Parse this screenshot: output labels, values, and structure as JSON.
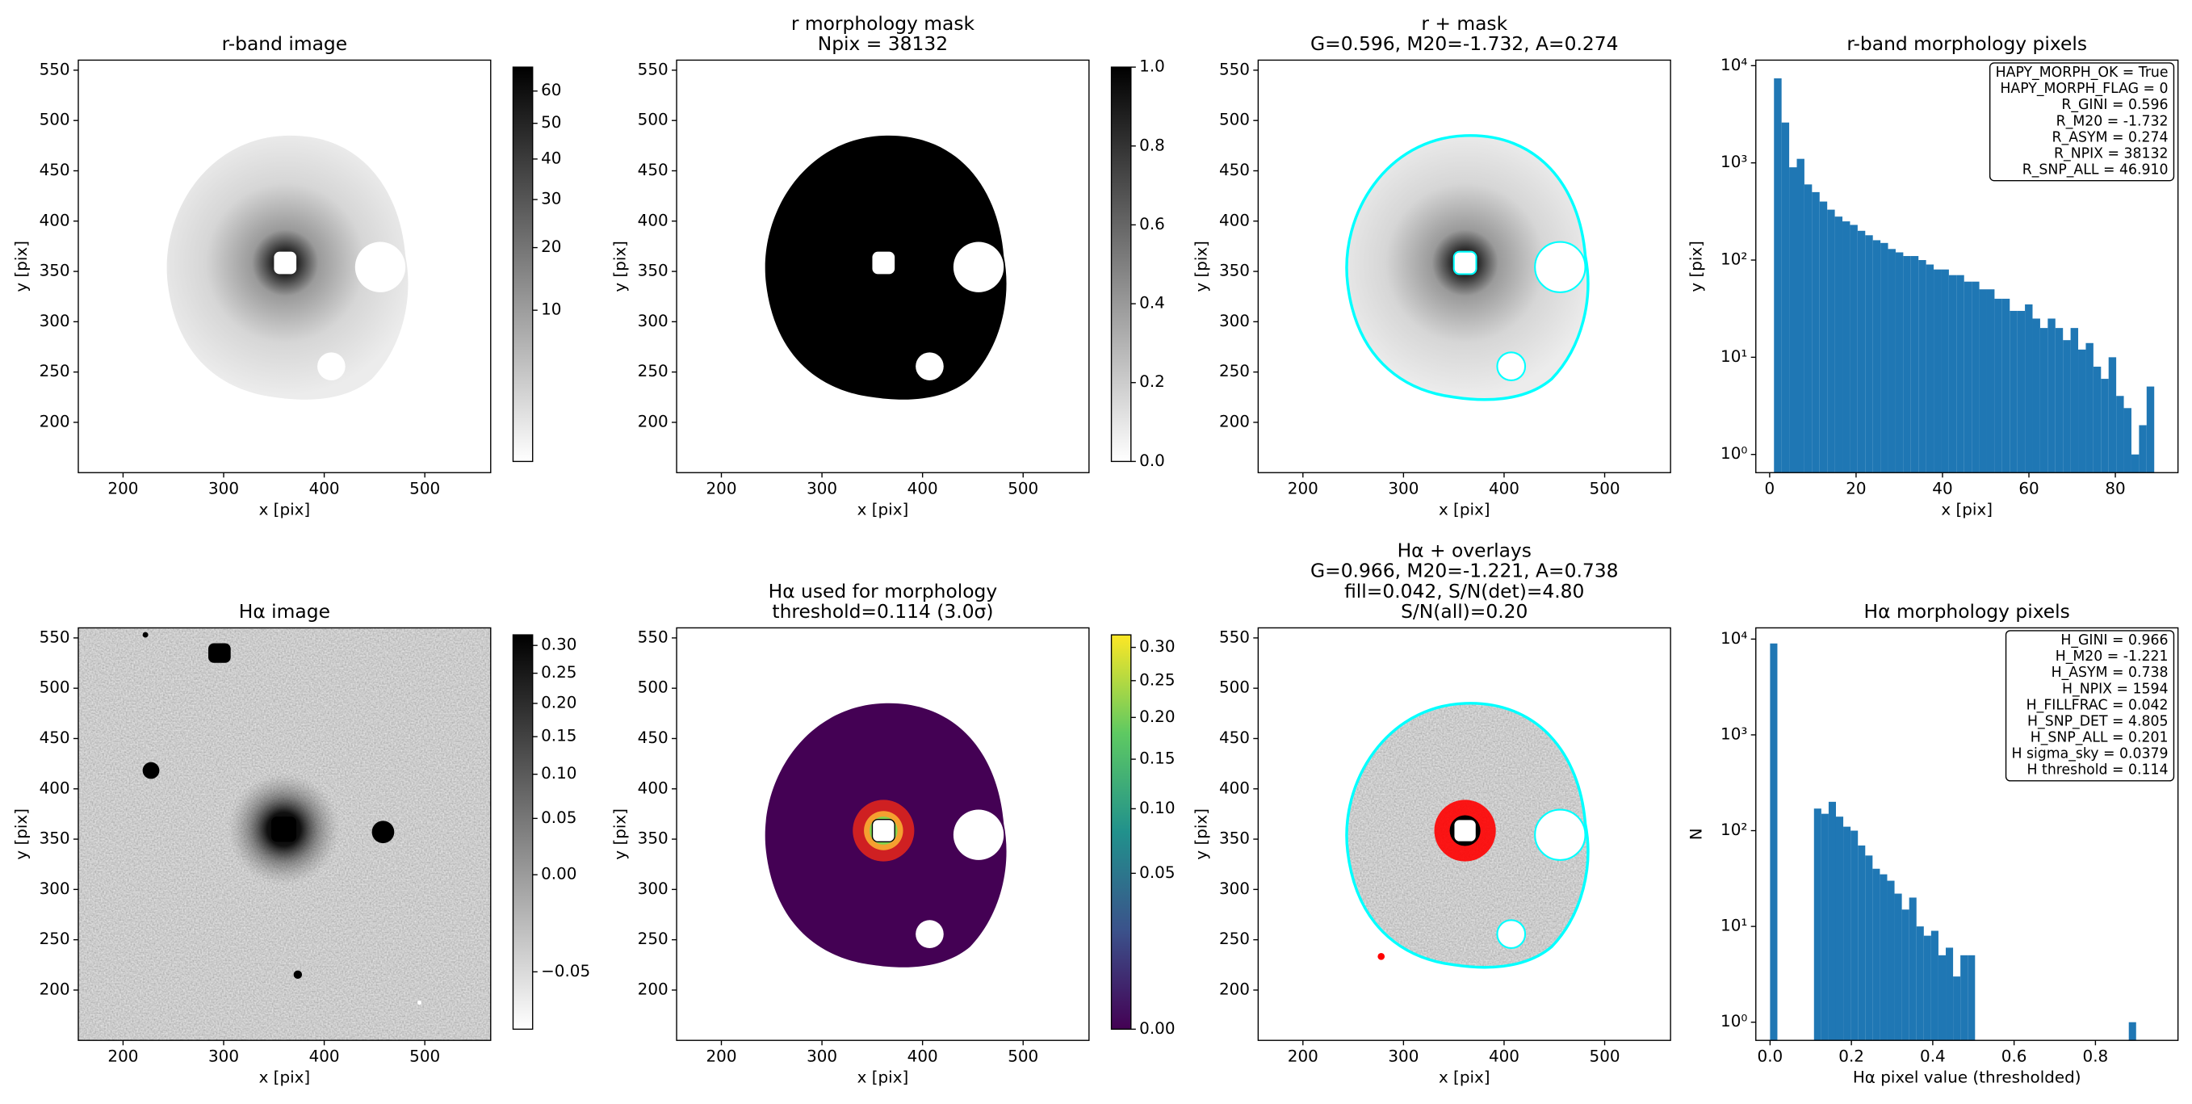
{
  "chart_data": [
    {
      "type": "image",
      "title": [
        "r-band image"
      ],
      "xlabel": "x [pix]",
      "ylabel": "y [pix]",
      "xlim": [
        155.5,
        565.5
      ],
      "ylim": [
        150,
        560
      ],
      "xticks": [
        200,
        300,
        400,
        500
      ],
      "yticks": [
        200,
        250,
        300,
        350,
        400,
        450,
        500,
        550
      ],
      "cmap": "gray_r",
      "colorbar": {
        "clim": [
          0,
          68
        ],
        "scale": "sqrt",
        "ticks": [
          10,
          20,
          30,
          40,
          50,
          60
        ]
      }
    },
    {
      "type": "image",
      "title": [
        "r morphology mask",
        "Npix = 38132"
      ],
      "xlabel": "x [pix]",
      "ylabel": "y [pix]",
      "xlim": [
        155.5,
        565.5
      ],
      "ylim": [
        150,
        560
      ],
      "xticks": [
        200,
        300,
        400,
        500
      ],
      "yticks": [
        200,
        250,
        300,
        350,
        400,
        450,
        500,
        550
      ],
      "cmap": "gray_r",
      "colorbar": {
        "clim": [
          0,
          1
        ],
        "scale": "linear",
        "ticks": [
          {
            "value": 0,
            "label": "0.0"
          },
          0.2,
          0.4,
          0.6,
          0.8,
          {
            "value": 1,
            "label": "1.0"
          }
        ]
      }
    },
    {
      "type": "image",
      "title": [
        "r + mask",
        "G=0.596, M20=-1.732, A=0.274"
      ],
      "xlabel": "x [pix]",
      "ylabel": "y [pix]",
      "xlim": [
        155.5,
        565.5
      ],
      "ylim": [
        150,
        560
      ],
      "xticks": [
        200,
        300,
        400,
        500
      ],
      "yticks": [
        200,
        250,
        300,
        350,
        400,
        450,
        500,
        550
      ],
      "overlay_color": "#00ffff"
    },
    {
      "type": "histogram",
      "title": [
        "r-band morphology pixels"
      ],
      "xlabel": "x [pix]",
      "ylabel": "y [pix]",
      "log_y": true,
      "color": "#1f77b4",
      "xlim": [
        -3.2,
        94.5
      ],
      "ylim": [
        0.65,
        11400
      ],
      "xticks": [
        0,
        20,
        40,
        60,
        80
      ],
      "yticks": [
        {
          "value": 1,
          "label": "10⁰"
        },
        {
          "value": 10,
          "label": "10¹"
        },
        {
          "value": 100,
          "label": "10²"
        },
        {
          "value": 1000,
          "label": "10³"
        },
        {
          "value": 10000,
          "label": "10⁴"
        }
      ],
      "bins": [
        1,
        2.76,
        4.52,
        6.28,
        8.04,
        9.8,
        11.56,
        13.32,
        15.08,
        16.84,
        18.6,
        20.36,
        22.12,
        23.88,
        25.64,
        27.4,
        29.16,
        30.92,
        32.68,
        34.44,
        36.2,
        37.96,
        39.72,
        41.48,
        43.24,
        45,
        46.76,
        48.52,
        50.28,
        52.04,
        53.8,
        55.56,
        57.32,
        59.08,
        60.84,
        62.6,
        64.36,
        66.12,
        67.88,
        69.64,
        71.4,
        73.16,
        74.92,
        76.68,
        78.44,
        80.2,
        81.96,
        83.72,
        85.48,
        87.24,
        89
      ],
      "values": [
        7400,
        2600,
        900,
        1100,
        600,
        500,
        400,
        330,
        280,
        250,
        230,
        200,
        180,
        160,
        150,
        130,
        120,
        110,
        110,
        100,
        90,
        80,
        80,
        70,
        70,
        60,
        60,
        50,
        50,
        40,
        40,
        30,
        30,
        35,
        25,
        20,
        25,
        20,
        15,
        20,
        12,
        14,
        8,
        6,
        10,
        4,
        3,
        1,
        2,
        5
      ],
      "annotation": [
        "HAPY_MORPH_OK = True",
        "HAPY_MORPH_FLAG = 0",
        "R_GINI = 0.596",
        "R_M20 = -1.732",
        "R_ASYM = 0.274",
        "R_NPIX = 38132",
        "R_SNP_ALL = 46.910"
      ]
    },
    {
      "type": "image",
      "title": [
        "Hα image"
      ],
      "xlabel": "x [pix]",
      "ylabel": "y [pix]",
      "xlim": [
        155.5,
        565.5
      ],
      "ylim": [
        150,
        560
      ],
      "xticks": [
        200,
        300,
        400,
        500
      ],
      "yticks": [
        200,
        250,
        300,
        350,
        400,
        450,
        500,
        550
      ],
      "cmap": "gray_r",
      "colorbar": {
        "clim": [
          -0.058,
          0.32
        ],
        "scale": "sqrt",
        "ticks": [
          {
            "value": -0.05,
            "label": "−0.05"
          },
          {
            "value": 0,
            "label": "0.00"
          },
          0.05,
          {
            "value": 0.1,
            "label": "0.10"
          },
          0.15,
          {
            "value": 0.2,
            "label": "0.20"
          },
          0.25,
          {
            "value": 0.3,
            "label": "0.30"
          }
        ]
      }
    },
    {
      "type": "image",
      "title": [
        "Hα used for morphology",
        "threshold=0.114 (3.0σ)"
      ],
      "xlabel": "x [pix]",
      "ylabel": "y [pix]",
      "xlim": [
        155.5,
        565.5
      ],
      "ylim": [
        150,
        560
      ],
      "xticks": [
        200,
        300,
        400,
        500
      ],
      "yticks": [
        200,
        250,
        300,
        350,
        400,
        450,
        500,
        550
      ],
      "cmap": "viridis",
      "colorbar": {
        "clim": [
          0,
          0.32
        ],
        "scale": "sqrt",
        "ticks": [
          {
            "value": 0,
            "label": "0.00"
          },
          0.05,
          {
            "value": 0.1,
            "label": "0.10"
          },
          0.15,
          {
            "value": 0.2,
            "label": "0.20"
          },
          0.25,
          {
            "value": 0.3,
            "label": "0.30"
          }
        ]
      }
    },
    {
      "type": "image",
      "title": [
        "Hα + overlays",
        "G=0.966, M20=-1.221, A=0.738",
        "fill=0.042, S/N(det)=4.80",
        "S/N(all)=0.20"
      ],
      "xlabel": "x [pix]",
      "ylabel": "y [pix]",
      "xlim": [
        155.5,
        565.5
      ],
      "ylim": [
        150,
        560
      ],
      "xticks": [
        200,
        300,
        400,
        500
      ],
      "yticks": [
        200,
        250,
        300,
        350,
        400,
        450,
        500,
        550
      ],
      "overlay_color": "#00ffff"
    },
    {
      "type": "histogram",
      "title": [
        "Hα morphology pixels"
      ],
      "xlabel": "Hα pixel value (thresholded)",
      "ylabel": "N",
      "log_y": true,
      "color": "#1f77b4",
      "xlim": [
        -0.035,
        1.003
      ],
      "ylim": [
        0.646,
        13100
      ],
      "xticks": [
        {
          "value": 0,
          "label": "0.0"
        },
        0.2,
        0.4,
        0.6,
        0.8
      ],
      "yticks": [
        {
          "value": 1,
          "label": "10⁰"
        },
        {
          "value": 10,
          "label": "10¹"
        },
        {
          "value": 100,
          "label": "10²"
        },
        {
          "value": 1000,
          "label": "10³"
        },
        {
          "value": 10000,
          "label": "10⁴"
        }
      ],
      "bins": [
        0,
        0.018,
        0.036,
        0.054,
        0.072,
        0.09,
        0.108,
        0.126,
        0.144,
        0.162,
        0.18,
        0.198,
        0.216,
        0.234,
        0.252,
        0.27,
        0.288,
        0.306,
        0.324,
        0.342,
        0.36,
        0.378,
        0.396,
        0.414,
        0.432,
        0.45,
        0.468,
        0.486,
        0.504,
        0.522,
        0.54,
        0.558,
        0.576,
        0.594,
        0.612,
        0.63,
        0.648,
        0.666,
        0.684,
        0.702,
        0.72,
        0.738,
        0.756,
        0.774,
        0.792,
        0.81,
        0.828,
        0.846,
        0.864,
        0.882,
        0.9
      ],
      "values": [
        9000,
        0,
        0,
        0,
        0,
        0,
        170,
        150,
        200,
        140,
        110,
        100,
        70,
        55,
        40,
        35,
        30,
        22,
        15,
        20,
        10,
        8,
        9,
        5,
        6,
        3,
        5,
        5,
        0,
        0,
        0,
        0,
        0,
        0,
        0,
        0,
        0,
        0,
        0,
        0,
        0,
        0,
        0,
        0,
        0,
        0,
        0,
        0,
        0,
        1
      ],
      "annotation": [
        "H_GINI = 0.966",
        "H_M20 = -1.221",
        "H_ASYM = 0.738",
        "H_NPIX = 1594",
        "H_FILLFRAC = 0.042",
        "H_SNP_DET = 4.805",
        "H_SNP_ALL = 0.201",
        "H sigma_sky = 0.0379",
        "H threshold = 0.114"
      ]
    }
  ]
}
